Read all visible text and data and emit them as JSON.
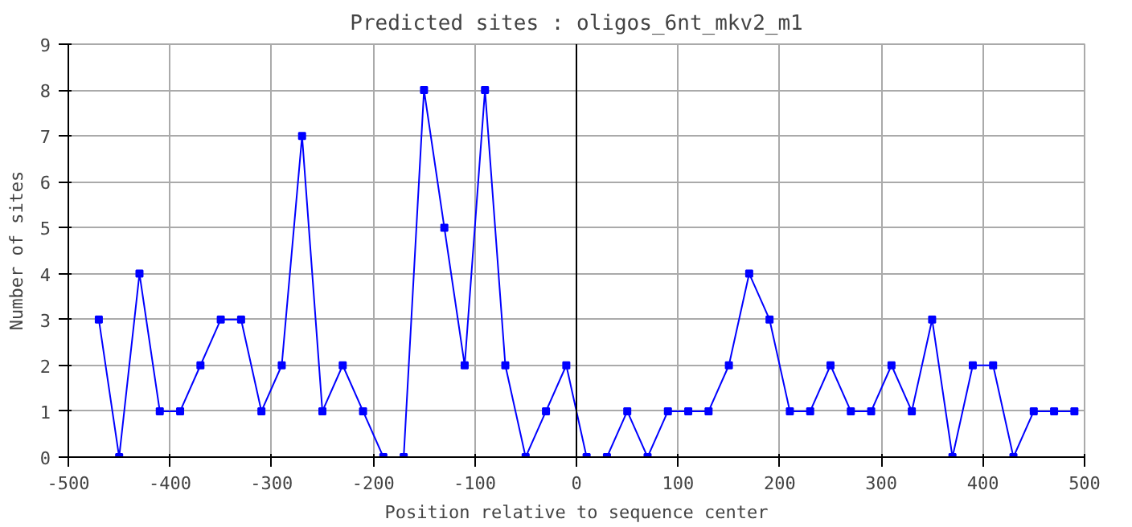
{
  "chart_data": {
    "type": "line",
    "title": "Predicted sites : oligos_6nt_mkv2_m1",
    "xlabel": "Position relative to sequence center",
    "ylabel": "Number of sites",
    "x": [
      -470,
      -450,
      -430,
      -410,
      -390,
      -370,
      -350,
      -330,
      -310,
      -290,
      -270,
      -250,
      -230,
      -210,
      -190,
      -170,
      -150,
      -130,
      -110,
      -90,
      -70,
      -50,
      -30,
      -10,
      10,
      30,
      50,
      70,
      90,
      110,
      130,
      150,
      170,
      190,
      210,
      230,
      250,
      270,
      290,
      310,
      330,
      350,
      370,
      390,
      410,
      430,
      450,
      470,
      490
    ],
    "series": [
      {
        "color": "#0000ff",
        "values": [
          3,
          0,
          4,
          1,
          1,
          2,
          3,
          3,
          1,
          2,
          7,
          1,
          2,
          1,
          0,
          0,
          8,
          5,
          2,
          8,
          2,
          0,
          1,
          2,
          0,
          0,
          1,
          0,
          1,
          1,
          1,
          2,
          4,
          3,
          1,
          1,
          2,
          1,
          1,
          2,
          1,
          3,
          0,
          2,
          2,
          0,
          1,
          1,
          1
        ]
      }
    ],
    "xlim": [
      -500,
      500
    ],
    "ylim": [
      0,
      9
    ],
    "xticks": [
      -500,
      -400,
      -300,
      -200,
      -100,
      0,
      100,
      200,
      300,
      400,
      500
    ],
    "yticks": [
      0,
      1,
      2,
      3,
      4,
      5,
      6,
      7,
      8,
      9
    ],
    "ref_lines": [
      {
        "axis": "x",
        "value": 0,
        "color": "#000000"
      }
    ],
    "grid": true,
    "marker": "square",
    "line_style": "solid"
  }
}
